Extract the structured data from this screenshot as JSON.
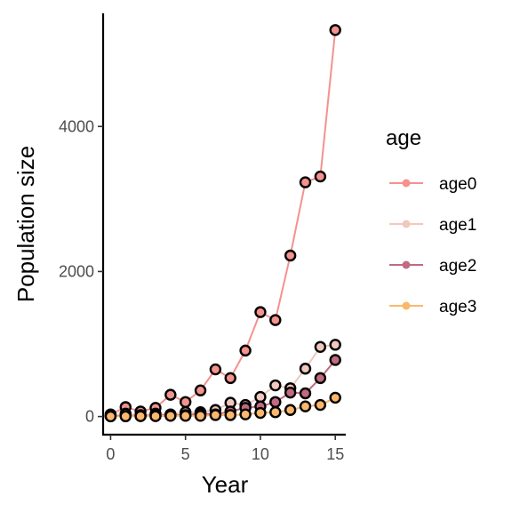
{
  "chart_data": {
    "type": "line",
    "xlabel": "Year",
    "ylabel": "Population size",
    "xlim": [
      -0.5,
      15.7
    ],
    "ylim": [
      -250,
      5560
    ],
    "x_ticks": [
      0,
      5,
      10,
      15
    ],
    "y_ticks": [
      0,
      2000,
      4000
    ],
    "x_tick_labels": [
      "0",
      "5",
      "10",
      "15"
    ],
    "y_tick_labels": [
      "0",
      "2000",
      "4000"
    ],
    "grid": false,
    "legend_title": "age",
    "legend_position": "right",
    "x": [
      0,
      1,
      2,
      3,
      4,
      5,
      6,
      7,
      8,
      9,
      10,
      11,
      12,
      13,
      14,
      15
    ],
    "series": [
      {
        "name": "age0",
        "color": "#F4928E",
        "values": [
          30,
          130,
          70,
          120,
          300,
          200,
          360,
          650,
          530,
          910,
          1440,
          1330,
          2220,
          3230,
          3310,
          5330
        ]
      },
      {
        "name": "age1",
        "color": "#F0C8BE",
        "values": [
          10,
          40,
          20,
          40,
          30,
          60,
          60,
          90,
          190,
          160,
          270,
          430,
          390,
          660,
          960,
          990
        ]
      },
      {
        "name": "age2",
        "color": "#C06B80",
        "values": [
          5,
          10,
          10,
          15,
          20,
          20,
          40,
          30,
          70,
          120,
          140,
          200,
          330,
          320,
          530,
          780
        ]
      },
      {
        "name": "age3",
        "color": "#FBB76C",
        "values": [
          2,
          3,
          5,
          5,
          10,
          10,
          10,
          20,
          20,
          30,
          50,
          60,
          90,
          140,
          160,
          260
        ]
      }
    ]
  }
}
